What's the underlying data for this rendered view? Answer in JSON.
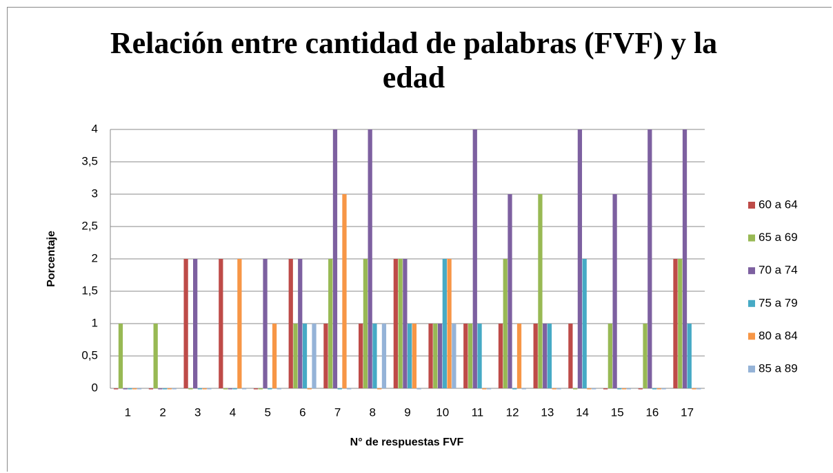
{
  "chart_data": {
    "type": "bar",
    "title": "Relación entre cantidad de palabras (FVF) y la edad",
    "x_label": "N° de respuestas FVF",
    "y_label": "Porcentaje",
    "categories": [
      "1",
      "2",
      "3",
      "4",
      "5",
      "6",
      "7",
      "8",
      "9",
      "10",
      "11",
      "12",
      "13",
      "14",
      "15",
      "16",
      "17"
    ],
    "series": [
      {
        "name": "60 a 64",
        "color": "#be4b48",
        "values": [
          0,
          0,
          2,
          2,
          0,
          2,
          1,
          1,
          2,
          1,
          1,
          1,
          1,
          1,
          0,
          0,
          2
        ]
      },
      {
        "name": "65 a 69",
        "color": "#98b954",
        "values": [
          1,
          1,
          0,
          0,
          0,
          1,
          2,
          2,
          2,
          1,
          1,
          2,
          3,
          0,
          1,
          1,
          2
        ]
      },
      {
        "name": "70 a 74",
        "color": "#7d60a0",
        "values": [
          0,
          0,
          2,
          0,
          2,
          2,
          4,
          4,
          2,
          1,
          4,
          3,
          1,
          4,
          3,
          4,
          4
        ]
      },
      {
        "name": "75 a 79",
        "color": "#46aac5",
        "values": [
          0,
          0,
          0,
          0,
          0,
          1,
          0,
          1,
          1,
          2,
          1,
          0,
          1,
          2,
          0,
          0,
          1
        ]
      },
      {
        "name": "80 a 84",
        "color": "#f79646",
        "values": [
          0,
          0,
          0,
          2,
          1,
          0,
          3,
          0,
          1,
          2,
          0,
          1,
          0,
          0,
          0,
          0,
          0
        ]
      },
      {
        "name": "85 a 89",
        "color": "#95b3d7",
        "values": [
          0,
          0,
          0,
          0,
          0,
          1,
          0,
          1,
          0,
          1,
          0,
          0,
          0,
          0,
          0,
          0,
          0
        ]
      }
    ],
    "ylim": [
      0,
      4
    ],
    "yticks": [
      0,
      {
        "value": 0.5,
        "label": "0,5"
      },
      1,
      {
        "value": 1.5,
        "label": "1,5"
      },
      2,
      {
        "value": 2.5,
        "label": "2,5"
      },
      3,
      {
        "value": 3.5,
        "label": "3,5"
      },
      4
    ],
    "grid": true,
    "legend": "right"
  }
}
